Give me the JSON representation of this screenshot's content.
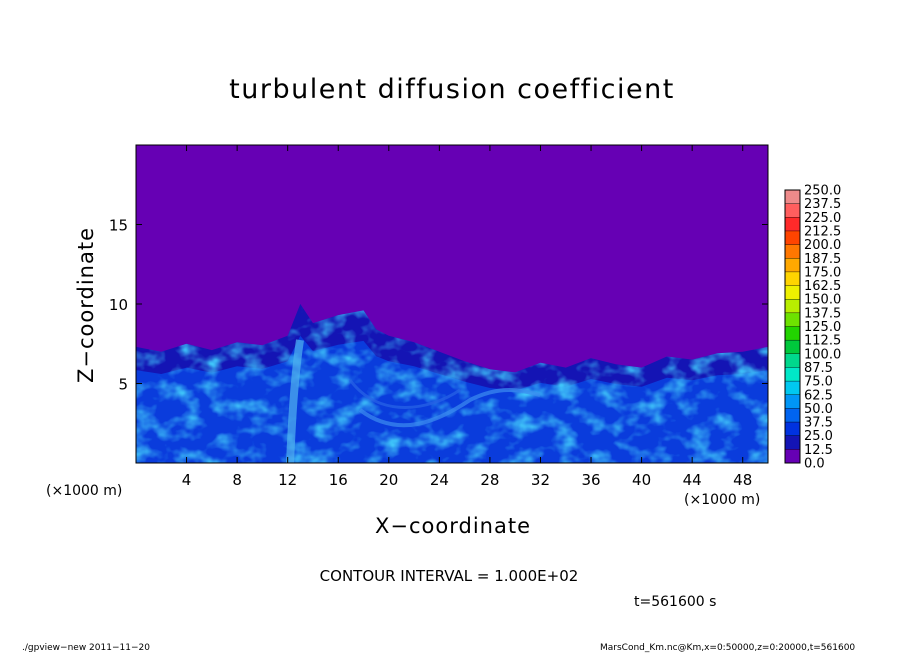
{
  "chart_data": {
    "type": "heatmap",
    "title": "turbulent diffusion coefficient",
    "xlabel": "X−coordinate",
    "ylabel": "Z−coordinate",
    "x_unit_left": "(×1000 m)",
    "x_unit_right": "(×1000 m)",
    "xlim": [
      0,
      50
    ],
    "ylim": [
      0,
      20
    ],
    "x_ticks": [
      4,
      8,
      12,
      16,
      20,
      24,
      28,
      32,
      36,
      40,
      44,
      48
    ],
    "y_ticks": [
      5,
      10,
      15
    ],
    "background_value": 0.0,
    "turbulent_layer_top": [
      {
        "x": 0,
        "z": 7.3
      },
      {
        "x": 2,
        "z": 7.0
      },
      {
        "x": 4,
        "z": 7.5
      },
      {
        "x": 6,
        "z": 7.1
      },
      {
        "x": 8,
        "z": 7.6
      },
      {
        "x": 10,
        "z": 7.4
      },
      {
        "x": 12,
        "z": 8.0
      },
      {
        "x": 13,
        "z": 10.0
      },
      {
        "x": 14,
        "z": 8.8
      },
      {
        "x": 16,
        "z": 9.3
      },
      {
        "x": 18,
        "z": 9.6
      },
      {
        "x": 19,
        "z": 8.4
      },
      {
        "x": 20,
        "z": 8.0
      },
      {
        "x": 22,
        "z": 7.6
      },
      {
        "x": 24,
        "z": 7.0
      },
      {
        "x": 26,
        "z": 6.4
      },
      {
        "x": 28,
        "z": 5.9
      },
      {
        "x": 30,
        "z": 5.7
      },
      {
        "x": 32,
        "z": 6.3
      },
      {
        "x": 34,
        "z": 6.0
      },
      {
        "x": 36,
        "z": 6.6
      },
      {
        "x": 38,
        "z": 6.2
      },
      {
        "x": 40,
        "z": 6.0
      },
      {
        "x": 42,
        "z": 6.7
      },
      {
        "x": 44,
        "z": 6.5
      },
      {
        "x": 46,
        "z": 6.9
      },
      {
        "x": 48,
        "z": 7.0
      },
      {
        "x": 50,
        "z": 7.3
      }
    ],
    "colorbar": {
      "min": 0.0,
      "max": 250.0,
      "step": 12.5,
      "labels": [
        "250.0",
        "237.5",
        "225.0",
        "212.5",
        "200.0",
        "187.5",
        "175.0",
        "162.5",
        "150.0",
        "137.5",
        "125.0",
        "112.5",
        "100.0",
        "87.5",
        "75.0",
        "62.5",
        "50.0",
        "37.5",
        "25.0",
        "12.5",
        "0.0"
      ],
      "colors": [
        "#ee8a8a",
        "#ff5e5e",
        "#ff2a2a",
        "#ff4400",
        "#ff7700",
        "#ffa800",
        "#ffd400",
        "#eef000",
        "#b8ee00",
        "#6ee200",
        "#22d400",
        "#00c83c",
        "#00d88c",
        "#00e8c8",
        "#00c8f0",
        "#0096f6",
        "#0064f0",
        "#0032e0",
        "#1414b4",
        "#6600b4"
      ]
    },
    "contour_interval": "CONTOUR INTERVAL = 1.000E+02",
    "time": "t=561600 s"
  },
  "footer": {
    "left": "./gpview−new   2011−11−20",
    "right": "MarsCond_Km.nc@Km,x=0:50000,z=0:20000,t=561600"
  }
}
